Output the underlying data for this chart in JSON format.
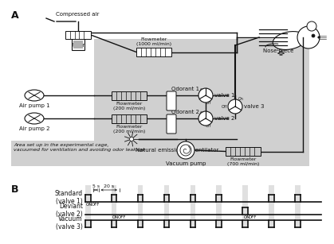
{
  "bg_color": "#ffffff",
  "gray_bg": "#d0d0d0",
  "light_gray_band": "#e0e0e0",
  "panel_a_label": "A",
  "panel_b_label": "B",
  "small_fontsize": 5.0,
  "tiny_fontsize": 4.0,
  "label_fontsize": 5.5,
  "line_color": "#111111",
  "component_labels": {
    "compressed_air": "Compressed air",
    "filter": "Filter",
    "flowmeter_1000": "Flowmeter\n(1000 ml/min)",
    "flowmeter_200_1": "Flowmeter\n(200 ml/min)",
    "flowmeter_200_2": "Flowmeter\n(200 ml/min)",
    "flowmeter_700": "Flowmeter\n(700 ml/min)",
    "odorant1": "Odorant 1",
    "odorant2": "Odorant 2",
    "air_pump1": "Air pump 1",
    "air_pump2": "Air pump 2",
    "valve1": "valve 1",
    "valve2": "valve 2",
    "valve3": "valve 3",
    "nose_piece": "Nose piece",
    "vacuum_pump": "Vacuum pump",
    "natural_emission": "Natural emission to ventilator",
    "cage_note": "Area set up in the experimental cage,\nvacuumed for ventilation and avoiding odor leakage",
    "scale": "1 cm"
  },
  "pulse_labels": {
    "standard": "Standard\n(valve 1)",
    "deviant": "Deviant\n(valve 2)",
    "vacuum": "Vacuum\n(valve 3)"
  },
  "timing_labels": [
    "5 s",
    "20 s"
  ]
}
